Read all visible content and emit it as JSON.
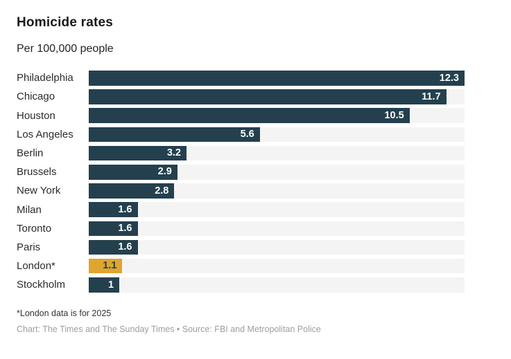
{
  "chart_data": {
    "type": "bar",
    "orientation": "horizontal",
    "title": "Homicide rates",
    "subtitle": "Per 100,000 people",
    "categories": [
      "Philadelphia",
      "Chicago",
      "Houston",
      "Los Angeles",
      "Berlin",
      "Brussels",
      "New York",
      "Milan",
      "Toronto",
      "Paris",
      "London*",
      "Stockholm"
    ],
    "values": [
      12.3,
      11.7,
      10.5,
      5.6,
      3.2,
      2.9,
      2.8,
      1.6,
      1.6,
      1.6,
      1.1,
      1
    ],
    "value_labels": [
      "12.3",
      "11.7",
      "10.5",
      "5.6",
      "3.2",
      "2.9",
      "2.8",
      "1.6",
      "1.6",
      "1.6",
      "1.1",
      "1"
    ],
    "highlight_index": 10,
    "xlim": [
      0,
      12.3
    ],
    "grid": false,
    "legend": false,
    "value_label_position": "inside-end",
    "colors": {
      "bar": "#24404e",
      "highlight": "#e0a52e",
      "track": "#f4f4f4",
      "value_text": "#ffffff",
      "highlight_value_text": "#24404e"
    }
  },
  "footer": {
    "footnote": "*London data is for 2025",
    "source": "Chart: The Times and The Sunday Times • Source: FBI and Metropolitan Police"
  }
}
